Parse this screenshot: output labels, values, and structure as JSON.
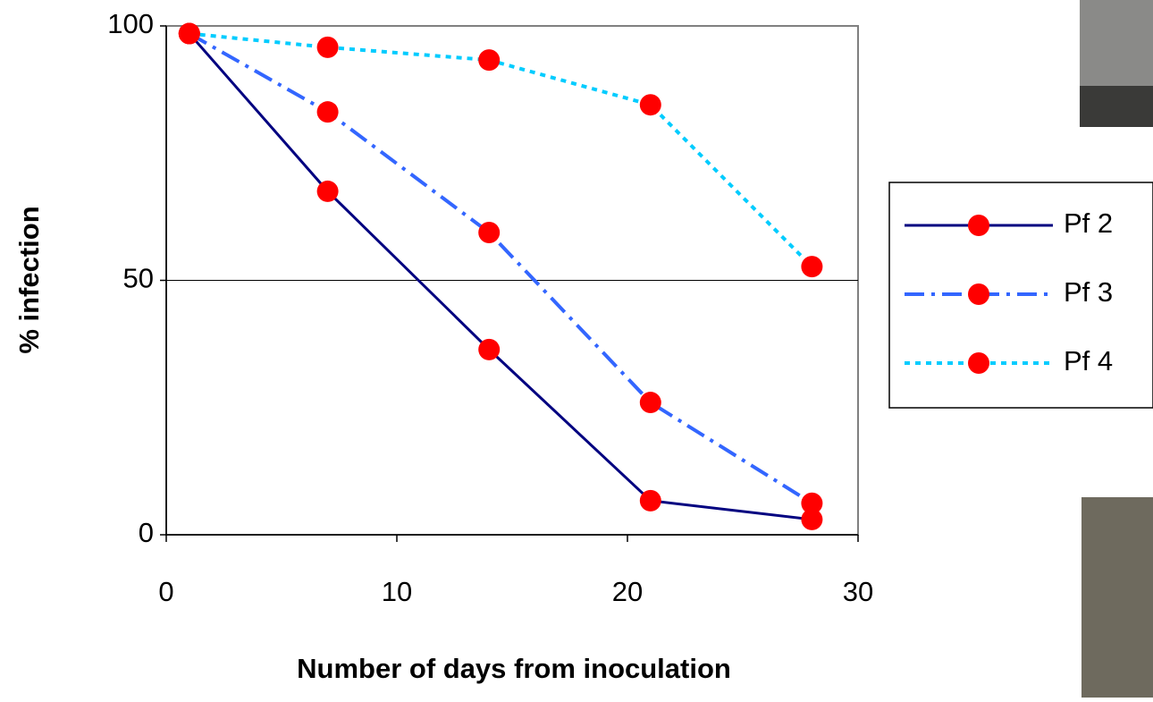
{
  "chart_data": {
    "type": "line",
    "x_label": "Number of days from inoculation",
    "y_label": "% infection",
    "x": [
      1,
      7,
      14,
      21,
      28
    ],
    "series": [
      {
        "name": "Pf 2",
        "color": "#000080",
        "dash": "solid",
        "values": [
          98.5,
          67.5,
          36.4,
          6.7,
          3.0
        ]
      },
      {
        "name": "Pf 3",
        "color": "#3366ff",
        "dash": "dashdot",
        "values": [
          98.5,
          83.1,
          59.4,
          26.0,
          6.2
        ]
      },
      {
        "name": "Pf 4",
        "color": "#00ccff",
        "dash": "dotted",
        "values": [
          98.5,
          95.8,
          93.3,
          84.5,
          52.7
        ]
      }
    ],
    "marker_color": "#ff0000",
    "xlim": [
      0,
      30
    ],
    "xticks": [
      0,
      10,
      20,
      30
    ],
    "ylim": [
      0,
      100
    ],
    "yticks": [
      0,
      50,
      100
    ],
    "grid_y": [
      50
    ]
  }
}
